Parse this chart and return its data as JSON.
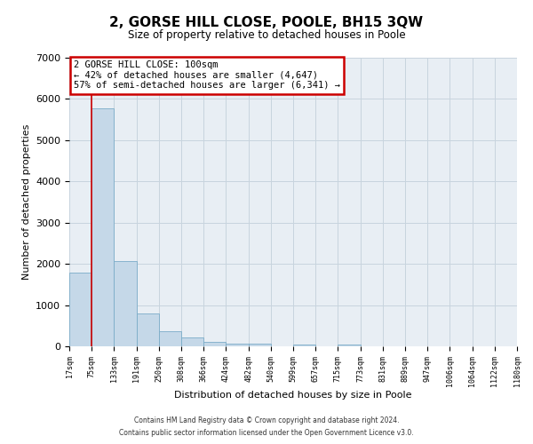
{
  "title": "2, GORSE HILL CLOSE, POOLE, BH15 3QW",
  "subtitle": "Size of property relative to detached houses in Poole",
  "xlabel": "Distribution of detached houses by size in Poole",
  "ylabel": "Number of detached properties",
  "bar_color": "#c5d8e8",
  "bar_edge_color": "#7aacc8",
  "background_color": "#ffffff",
  "grid_color": "#c8d4de",
  "plot_bg_color": "#e8eef4",
  "bin_labels": [
    "17sqm",
    "75sqm",
    "133sqm",
    "191sqm",
    "250sqm",
    "308sqm",
    "366sqm",
    "424sqm",
    "482sqm",
    "540sqm",
    "599sqm",
    "657sqm",
    "715sqm",
    "773sqm",
    "831sqm",
    "889sqm",
    "947sqm",
    "1006sqm",
    "1064sqm",
    "1122sqm",
    "1180sqm"
  ],
  "bar_values": [
    1780,
    5780,
    2060,
    800,
    360,
    225,
    110,
    60,
    55,
    0,
    50,
    0,
    50,
    0,
    0,
    0,
    0,
    0,
    0,
    0
  ],
  "ylim": [
    0,
    7000
  ],
  "yticks": [
    0,
    1000,
    2000,
    3000,
    4000,
    5000,
    6000,
    7000
  ],
  "red_line_x": 1,
  "annotation_line1": "2 GORSE HILL CLOSE: 100sqm",
  "annotation_line2": "← 42% of detached houses are smaller (4,647)",
  "annotation_line3": "57% of semi-detached houses are larger (6,341) →",
  "annotation_box_color": "#ffffff",
  "annotation_box_edge": "#cc0000",
  "footnote1": "Contains HM Land Registry data © Crown copyright and database right 2024.",
  "footnote2": "Contains public sector information licensed under the Open Government Licence v3.0."
}
